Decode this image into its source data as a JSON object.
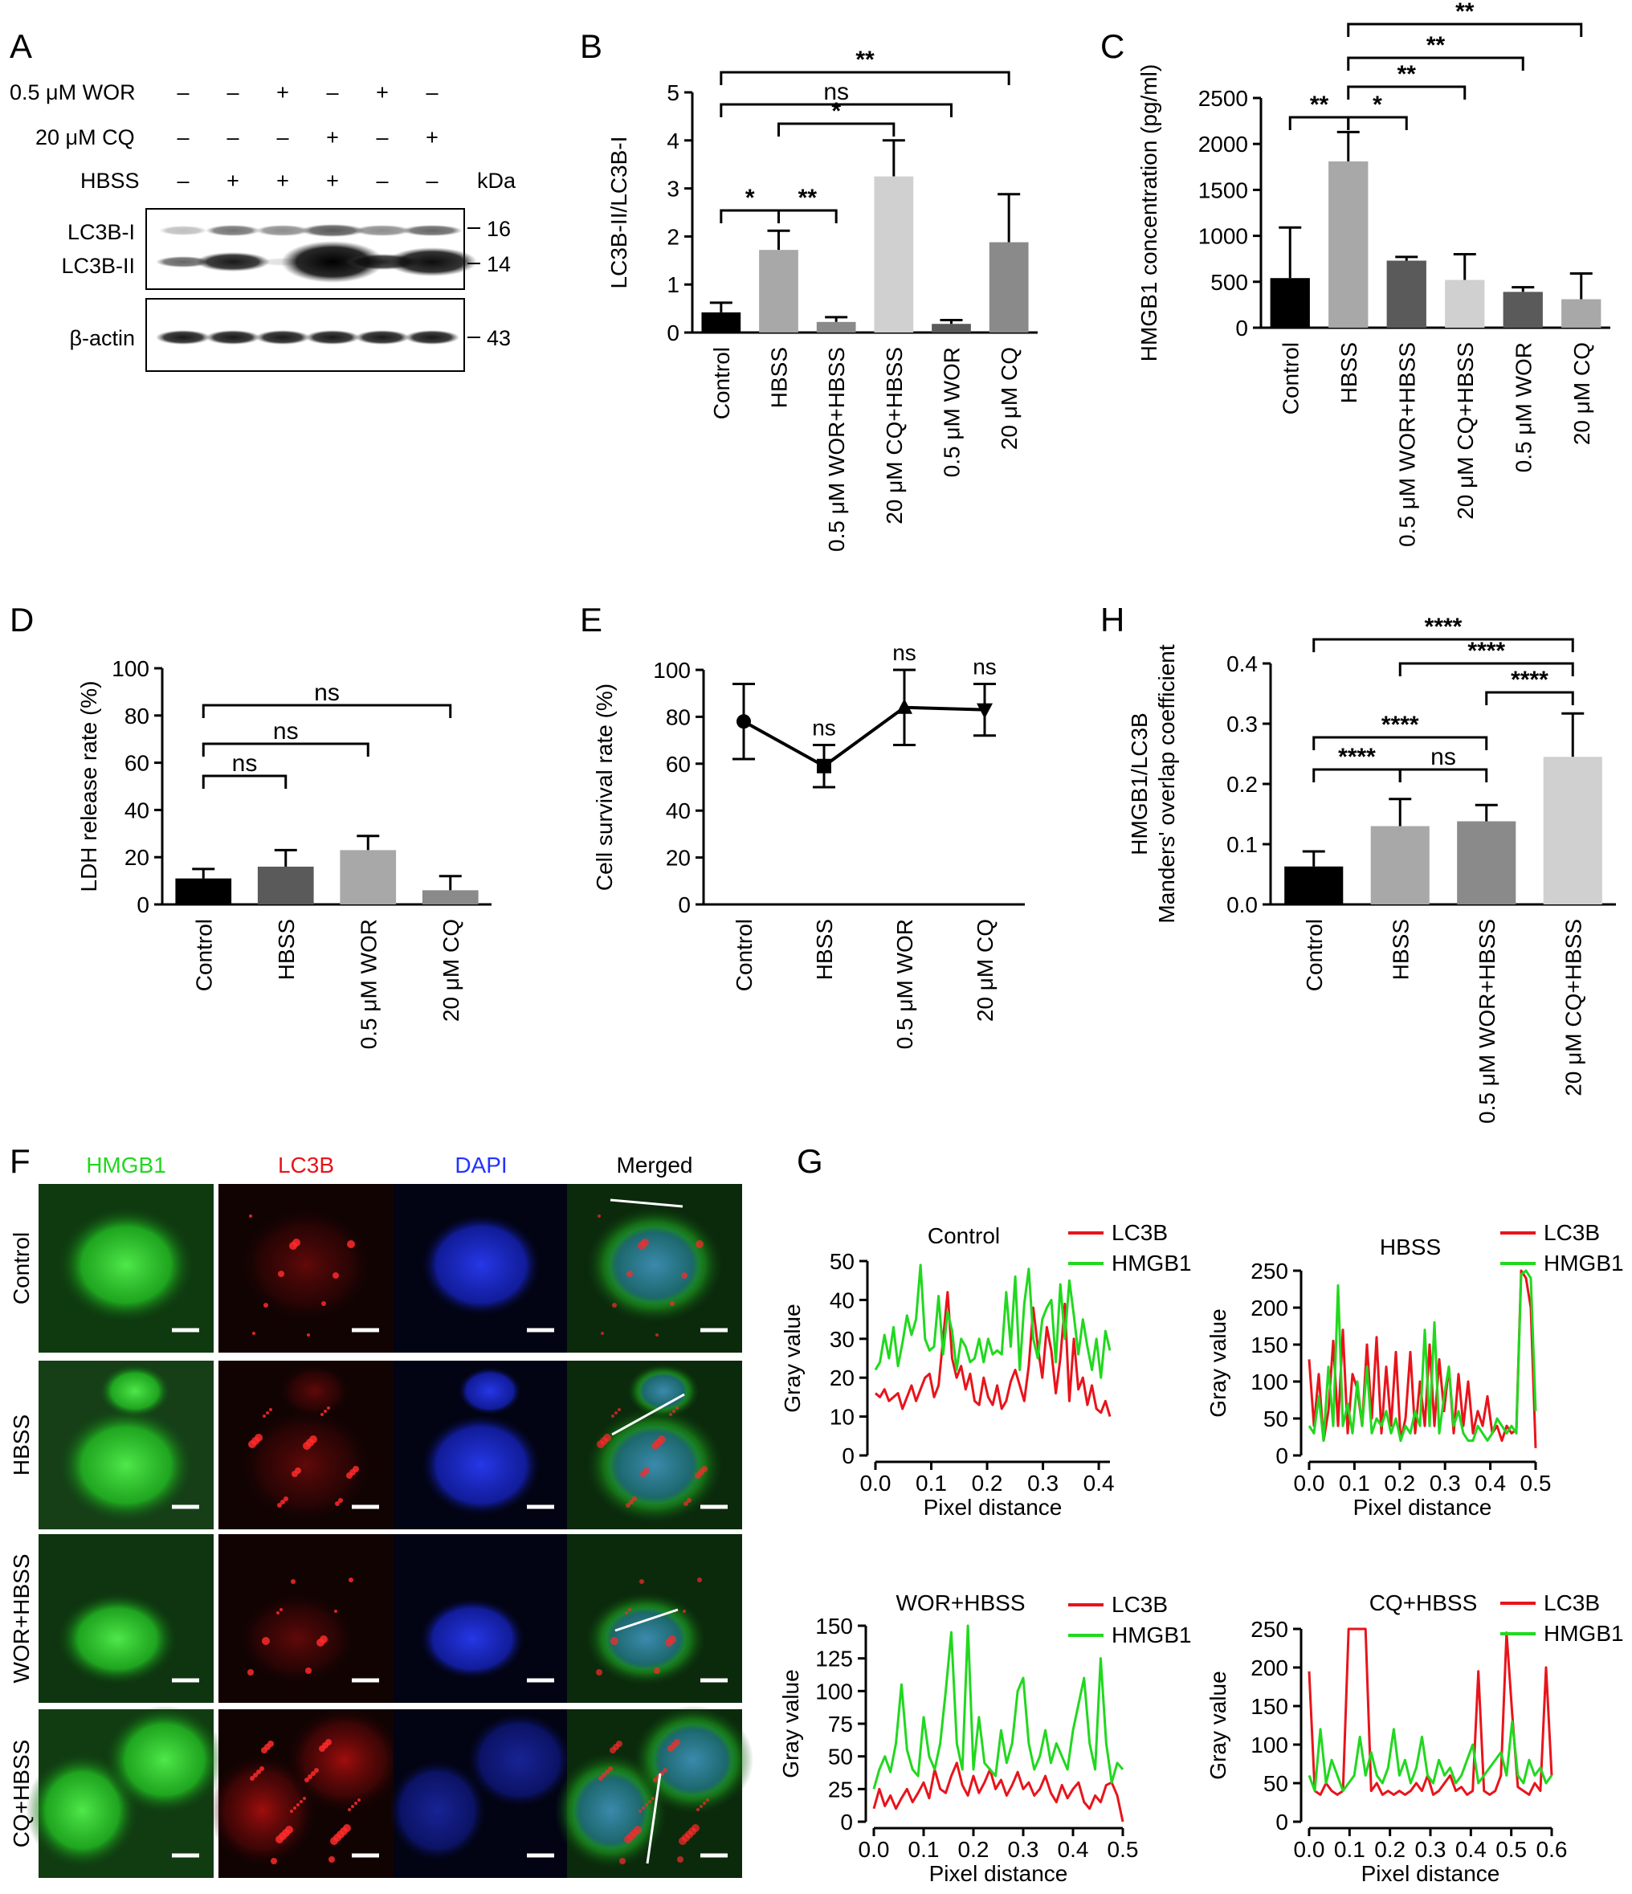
{
  "panel_letters": {
    "A": "A",
    "B": "B",
    "C": "C",
    "D": "D",
    "E": "E",
    "F": "F",
    "G": "G",
    "H": "H"
  },
  "blot": {
    "rows": [
      {
        "label": "0.5 μM WOR",
        "marks": [
          "–",
          "–",
          "+",
          "–",
          "+",
          "–"
        ]
      },
      {
        "label": "20 μM CQ",
        "marks": [
          "–",
          "–",
          "–",
          "+",
          "–",
          "+"
        ]
      },
      {
        "label": "HBSS",
        "marks": [
          "–",
          "+",
          "+",
          "+",
          "–",
          "–"
        ]
      }
    ],
    "kda_header": "kDa",
    "band_labels": [
      "LC3B-I",
      "LC3B-II",
      "β-actin"
    ],
    "kda_marks": [
      "16",
      "14",
      "43"
    ]
  },
  "colors": {
    "black": "#000000",
    "dark": "#5a5a5a",
    "mid": "#8a8a8a",
    "light": "#a8a8a8",
    "pale": "#d0d0d0",
    "red": "#e8141b",
    "green": "#21d81f",
    "blue": "#2233ff"
  },
  "chart_data": [
    {
      "id": "B",
      "type": "bar",
      "ylabel": "LC3B-II/LC3B-I",
      "ylim": [
        0,
        5
      ],
      "yticks": [
        "0",
        "1",
        "2",
        "3",
        "4",
        "5"
      ],
      "categories": [
        "Control",
        "HBSS",
        "0.5 μM WOR+HBSS",
        "20 μM CQ+HBSS",
        "0.5 μM WOR",
        "20 μM CQ"
      ],
      "values": [
        0.42,
        1.72,
        0.22,
        3.25,
        0.18,
        1.88
      ],
      "errors": [
        0.2,
        0.4,
        0.1,
        0.75,
        0.08,
        1.0
      ],
      "bar_colors": [
        "#000000",
        "#a8a8a8",
        "#8a8a8a",
        "#d0d0d0",
        "#5a5a5a",
        "#8a8a8a"
      ],
      "annotations": [
        {
          "a": 0,
          "b": 5,
          "label": "**"
        },
        {
          "a": 0,
          "b": 4,
          "label": "ns"
        },
        {
          "a": 1,
          "b": 3,
          "label": "*"
        },
        {
          "a": 0,
          "b": 1,
          "label": "*"
        },
        {
          "a": 1,
          "b": 2,
          "label": "**"
        }
      ]
    },
    {
      "id": "C",
      "type": "bar",
      "ylabel": "HMGB1 concentration (pg/ml)",
      "ylim": [
        0,
        2500
      ],
      "yticks": [
        "0",
        "500",
        "1000",
        "1500",
        "2000",
        "2500"
      ],
      "categories": [
        "Control",
        "HBSS",
        "0.5 μM WOR+HBSS",
        "20 μM CQ+HBSS",
        "0.5 μM WOR",
        "20 μM CQ"
      ],
      "values": [
        540,
        1810,
        730,
        520,
        390,
        310
      ],
      "errors": [
        550,
        320,
        40,
        280,
        50,
        280
      ],
      "bar_colors": [
        "#000000",
        "#a8a8a8",
        "#5a5a5a",
        "#d0d0d0",
        "#5a5a5a",
        "#a8a8a8"
      ],
      "annotations": [
        {
          "a": 1,
          "b": 5,
          "label": "**"
        },
        {
          "a": 1,
          "b": 4,
          "label": "**"
        },
        {
          "a": 1,
          "b": 3,
          "label": "**"
        },
        {
          "a": 0,
          "b": 1,
          "label": "**"
        },
        {
          "a": 1,
          "b": 2,
          "label": "*"
        }
      ]
    },
    {
      "id": "D",
      "type": "bar",
      "ylabel": "LDH release rate (%)",
      "ylim": [
        0,
        100
      ],
      "yticks": [
        "0",
        "20",
        "40",
        "60",
        "80",
        "100"
      ],
      "categories": [
        "Control",
        "HBSS",
        "0.5 μM WOR",
        "20 μM CQ"
      ],
      "values": [
        11,
        16,
        23,
        6
      ],
      "errors": [
        4,
        7,
        6,
        6
      ],
      "bar_colors": [
        "#000000",
        "#5a5a5a",
        "#a8a8a8",
        "#8a8a8a"
      ],
      "annotations": [
        {
          "a": 0,
          "b": 3,
          "label": "ns"
        },
        {
          "a": 0,
          "b": 2,
          "label": "ns"
        },
        {
          "a": 0,
          "b": 1,
          "label": "ns"
        }
      ]
    },
    {
      "id": "E",
      "type": "line",
      "ylabel": "Cell survival rate (%)",
      "ylim": [
        0,
        100
      ],
      "yticks": [
        "0",
        "20",
        "40",
        "60",
        "80",
        "100"
      ],
      "categories": [
        "Control",
        "HBSS",
        "0.5 μM WOR",
        "20 μM CQ"
      ],
      "values": [
        78,
        59,
        84,
        83
      ],
      "errors": [
        16,
        9,
        16,
        11
      ],
      "point_labels": [
        "",
        "ns",
        "ns",
        "ns"
      ]
    },
    {
      "id": "H",
      "type": "bar",
      "ylabel": [
        "HMGB1/LC3B",
        "Manders' overlap coefficient"
      ],
      "ylim": [
        0,
        0.4
      ],
      "yticks": [
        "0.0",
        "0.1",
        "0.2",
        "0.3",
        "0.4"
      ],
      "categories": [
        "Control",
        "HBSS",
        "0.5 μM WOR+HBSS",
        "20 μM CQ+HBSS"
      ],
      "values": [
        0.063,
        0.13,
        0.138,
        0.245
      ],
      "errors": [
        0.025,
        0.045,
        0.027,
        0.072
      ],
      "bar_colors": [
        "#000000",
        "#a8a8a8",
        "#8a8a8a",
        "#d0d0d0"
      ],
      "annotations": [
        {
          "a": 0,
          "b": 3,
          "label": "****"
        },
        {
          "a": 1,
          "b": 3,
          "label": "****"
        },
        {
          "a": 2,
          "b": 3,
          "label": "****"
        },
        {
          "a": 0,
          "b": 2,
          "label": "****"
        },
        {
          "a": 0,
          "b": 1,
          "label": "****"
        },
        {
          "a": 1,
          "b": 2,
          "label": "ns"
        }
      ]
    },
    {
      "id": "G1",
      "type": "line",
      "title": "Control",
      "xlabel": "Pixel distance",
      "ylabel": "Gray value",
      "xlim": [
        0,
        0.42
      ],
      "ylim": [
        0,
        50
      ],
      "xticks": [
        "0.0",
        "0.1",
        "0.2",
        "0.3",
        "0.4"
      ],
      "yticks": [
        "0",
        "10",
        "20",
        "30",
        "40",
        "50"
      ],
      "series": [
        {
          "name": "LC3B",
          "values": [
            16,
            15,
            17,
            14,
            15,
            16,
            12,
            15,
            18,
            14,
            17,
            20,
            21,
            15,
            18,
            30,
            42,
            25,
            20,
            23,
            17,
            21,
            14,
            13,
            20,
            15,
            13,
            18,
            12,
            14,
            19,
            22,
            18,
            14,
            23,
            38,
            28,
            20,
            33,
            27,
            16,
            25,
            39,
            14,
            30,
            17,
            20,
            13,
            18,
            12,
            11,
            14,
            10
          ]
        },
        {
          "name": "HMGB1",
          "values": [
            22,
            24,
            31,
            25,
            33,
            23,
            29,
            36,
            31,
            35,
            49,
            30,
            27,
            28,
            41,
            26,
            37,
            32,
            22,
            30,
            28,
            24,
            25,
            30,
            24,
            30,
            26,
            27,
            26,
            42,
            28,
            46,
            22,
            39,
            48,
            30,
            25,
            35,
            38,
            40,
            24,
            44,
            30,
            45,
            36,
            26,
            35,
            28,
            22,
            30,
            20,
            32,
            27
          ]
        }
      ]
    },
    {
      "id": "G2",
      "type": "line",
      "title": "HBSS",
      "xlabel": "Pixel distance",
      "ylabel": "Gray value",
      "xlim": [
        0,
        0.5
      ],
      "ylim": [
        0,
        250
      ],
      "xticks": [
        "0.0",
        "0.1",
        "0.2",
        "0.3",
        "0.4",
        "0.5"
      ],
      "yticks": [
        "0",
        "50",
        "100",
        "150",
        "200",
        "250"
      ],
      "series": [
        {
          "name": "LC3B",
          "values": [
            130,
            40,
            110,
            20,
            60,
            155,
            40,
            170,
            30,
            110,
            90,
            40,
            150,
            50,
            160,
            30,
            120,
            40,
            140,
            20,
            50,
            140,
            30,
            100,
            40,
            150,
            40,
            130,
            60,
            120,
            30,
            110,
            40,
            100,
            30,
            60,
            40,
            80,
            30,
            40,
            20,
            40,
            30,
            35,
            250,
            240,
            200,
            10
          ]
        },
        {
          "name": "HMGB1",
          "values": [
            40,
            30,
            80,
            20,
            120,
            40,
            230,
            40,
            70,
            30,
            100,
            40,
            120,
            30,
            50,
            40,
            60,
            30,
            50,
            20,
            40,
            30,
            60,
            40,
            170,
            40,
            180,
            30,
            80,
            120,
            40,
            60,
            30,
            20,
            20,
            40,
            30,
            20,
            30,
            50,
            40,
            30,
            40,
            30,
            245,
            250,
            240,
            60
          ]
        }
      ]
    },
    {
      "id": "G3",
      "type": "line",
      "title": "WOR+HBSS",
      "xlabel": "Pixel distance",
      "ylabel": "Gray value",
      "xlim": [
        0,
        0.5
      ],
      "ylim": [
        0,
        150
      ],
      "xticks": [
        "0.0",
        "0.1",
        "0.2",
        "0.3",
        "0.4",
        "0.5"
      ],
      "yticks": [
        "0",
        "25",
        "50",
        "75",
        "100",
        "125",
        "150"
      ],
      "series": [
        {
          "name": "LC3B",
          "values": [
            10,
            25,
            12,
            20,
            10,
            18,
            25,
            15,
            22,
            30,
            18,
            40,
            25,
            22,
            35,
            45,
            28,
            20,
            35,
            22,
            30,
            40,
            25,
            32,
            20,
            28,
            38,
            25,
            30,
            20,
            25,
            35,
            22,
            15,
            28,
            18,
            25,
            30,
            15,
            10,
            20,
            15,
            28,
            30,
            20,
            0
          ]
        },
        {
          "name": "HMGB1",
          "values": [
            25,
            40,
            50,
            38,
            60,
            105,
            55,
            40,
            35,
            80,
            50,
            40,
            60,
            100,
            145,
            60,
            40,
            150,
            40,
            80,
            45,
            40,
            35,
            70,
            45,
            60,
            100,
            110,
            60,
            40,
            50,
            70,
            45,
            60,
            50,
            40,
            70,
            90,
            110,
            60,
            40,
            125,
            60,
            30,
            45,
            40
          ]
        }
      ]
    },
    {
      "id": "G4",
      "type": "line",
      "title": "CQ+HBSS",
      "xlabel": "Pixel distance",
      "ylabel": "Gray value",
      "xlim": [
        0,
        0.6
      ],
      "ylim": [
        0,
        250
      ],
      "xticks": [
        "0.0",
        "0.1",
        "0.2",
        "0.3",
        "0.4",
        "0.5",
        "0.6"
      ],
      "yticks": [
        "0",
        "50",
        "100",
        "150",
        "200",
        "250"
      ],
      "series": [
        {
          "name": "LC3B",
          "values": [
            195,
            40,
            35,
            50,
            40,
            35,
            40,
            250,
            250,
            250,
            250,
            40,
            50,
            35,
            40,
            35,
            40,
            35,
            40,
            50,
            40,
            60,
            35,
            40,
            50,
            60,
            40,
            45,
            35,
            40,
            195,
            40,
            35,
            40,
            60,
            245,
            140,
            45,
            40,
            35,
            50,
            40,
            200,
            60
          ]
        },
        {
          "name": "HMGB1",
          "values": [
            60,
            40,
            120,
            50,
            80,
            60,
            40,
            50,
            60,
            110,
            60,
            90,
            60,
            50,
            70,
            120,
            60,
            80,
            50,
            70,
            110,
            60,
            50,
            80,
            60,
            70,
            50,
            60,
            80,
            100,
            50,
            60,
            70,
            80,
            90,
            60,
            130,
            60,
            50,
            80,
            60,
            70,
            50,
            60
          ]
        }
      ]
    }
  ],
  "microscopy": {
    "columns": [
      {
        "label": "HMGB1",
        "color": "#21d81f"
      },
      {
        "label": "LC3B",
        "color": "#e8141b"
      },
      {
        "label": "DAPI",
        "color": "#2233ff"
      },
      {
        "label": "Merged",
        "color": "#000000"
      }
    ],
    "rows": [
      "Control",
      "HBSS",
      "WOR+HBSS",
      "CQ+HBSS"
    ]
  }
}
